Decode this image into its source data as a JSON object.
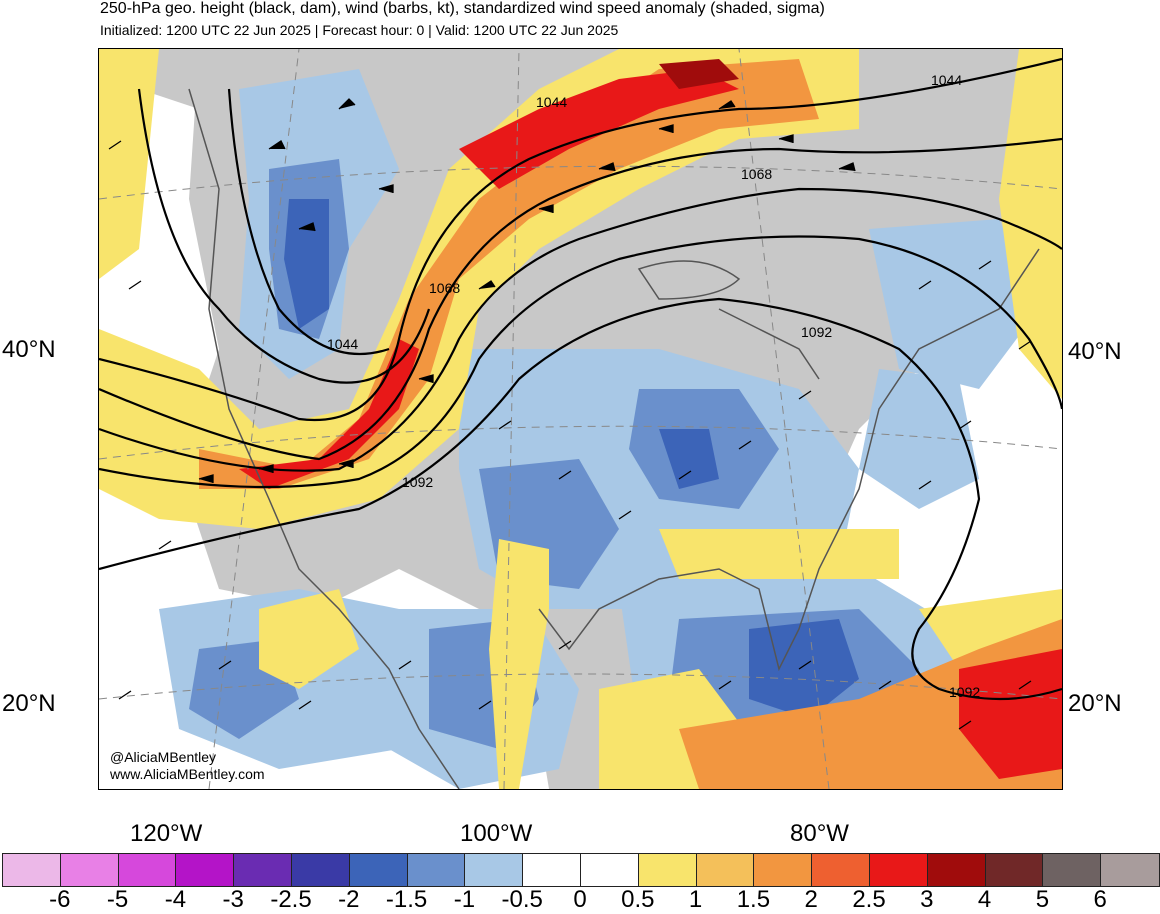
{
  "title": "250-hPa geo. height (black, dam), wind (barbs, kt), standardized wind speed anomaly (shaded, sigma)",
  "subtitle": "Initialized: 1200 UTC 22 Jun 2025 | Forecast hour: 0 | Valid: 1200 UTC 22 Jun 2025",
  "credits": [
    "@AliciaMBentley",
    "www.AliciaMBentley.com"
  ],
  "lat_labels": [
    "40°N",
    "20°N"
  ],
  "lon_labels": [
    "120°W",
    "100°W",
    "80°W"
  ],
  "contour_labels": [
    "1044",
    "1044",
    "1068",
    "1068",
    "1092",
    "1092",
    "1092",
    "1044"
  ],
  "colorbar": {
    "labels": [
      "-6",
      "-5",
      "-4",
      "-3",
      "-2.5",
      "-2",
      "-1.5",
      "-1",
      "-0.5",
      "0",
      "0.5",
      "1",
      "1.5",
      "2",
      "2.5",
      "3",
      "4",
      "5",
      "6"
    ],
    "colors": [
      "#ecb8e8",
      "#e880e6",
      "#d648dc",
      "#b414c8",
      "#6a2cb2",
      "#3a3aa6",
      "#3c64b8",
      "#6a90cc",
      "#a8c8e6",
      "#ffffff",
      "#ffffff",
      "#f8e46c",
      "#f4c05a",
      "#f29640",
      "#ee6030",
      "#e81818",
      "#a00c0c",
      "#702828",
      "#6e6262",
      "#a89c9c"
    ]
  },
  "colors": {
    "land_gray": "#c8c8c8",
    "height_contour": "#000000"
  }
}
